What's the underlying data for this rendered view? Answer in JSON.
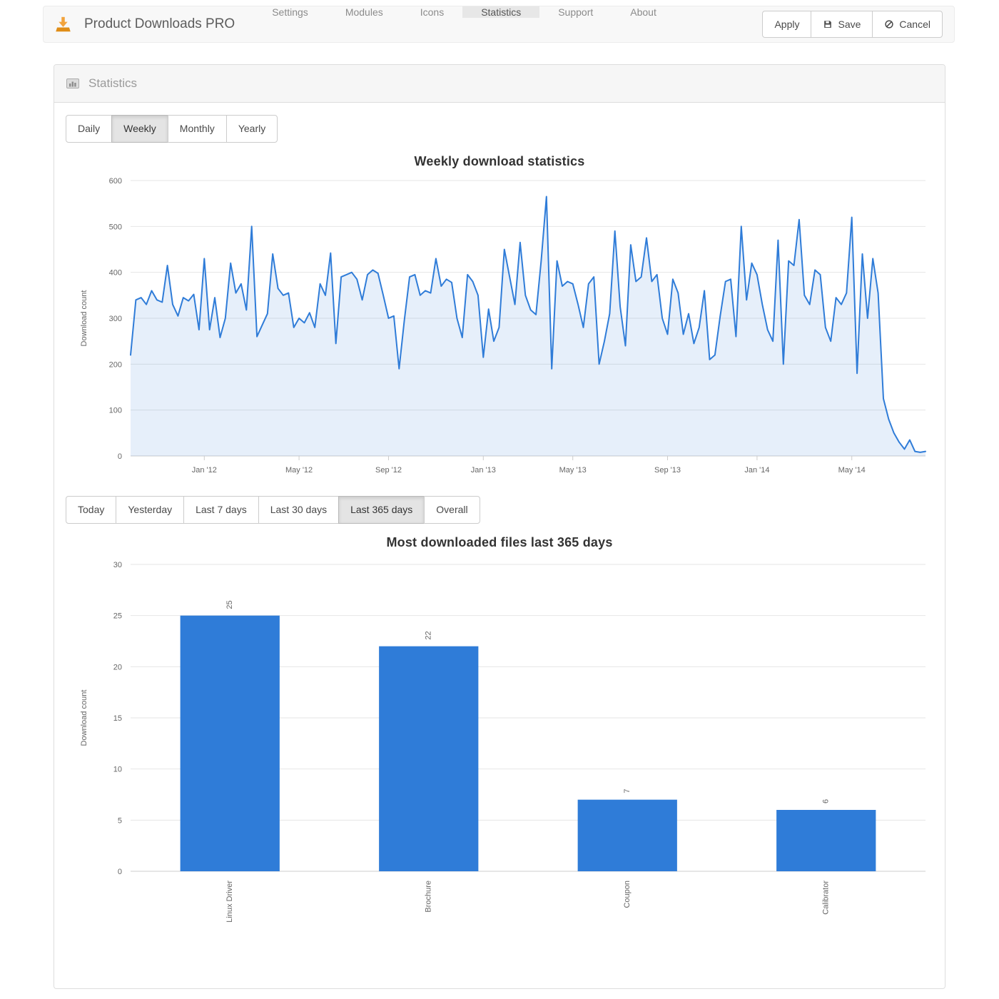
{
  "navbar": {
    "brand": "Product Downloads PRO",
    "items": [
      {
        "label": "Settings",
        "active": false
      },
      {
        "label": "Modules",
        "active": false
      },
      {
        "label": "Icons",
        "active": false
      },
      {
        "label": "Statistics",
        "active": true
      },
      {
        "label": "Support",
        "active": false
      },
      {
        "label": "About",
        "active": false
      }
    ],
    "actions": [
      {
        "label": "Apply",
        "icon": ""
      },
      {
        "label": "Save",
        "icon": "floppy-disk"
      },
      {
        "label": "Cancel",
        "icon": "ban-circle"
      }
    ]
  },
  "panel": {
    "title": "Statistics"
  },
  "period_tabs": {
    "items": [
      "Daily",
      "Weekly",
      "Monthly",
      "Yearly"
    ],
    "active": "Weekly"
  },
  "range_tabs": {
    "items": [
      "Today",
      "Yesterday",
      "Last 7 days",
      "Last 30 days",
      "Last 365 days",
      "Overall"
    ],
    "active": "Last 365 days"
  },
  "colors": {
    "accent_blue": "#2f7cd8",
    "area_fill": "rgba(47,124,216,0.12)",
    "brand_orange": "#ef9221",
    "grid": "#e6e6e6",
    "axis_line": "#cccccc",
    "tick_text": "#666666",
    "navbar_bg": "#f8f8f8",
    "active_gray": "#e7e7e7"
  },
  "chart_data": [
    {
      "type": "area",
      "title": "Weekly download statistics",
      "xlabel": "",
      "ylabel": "Download count",
      "ylim": [
        0,
        600
      ],
      "ytick_step": 100,
      "grid": true,
      "legend": "none",
      "x_tick_labels": [
        "Jan '12",
        "May '12",
        "Sep '12",
        "Jan '13",
        "May '13",
        "Sep '13",
        "Jan '14",
        "May '14"
      ],
      "x_tick_indices": [
        14,
        32,
        49,
        67,
        84,
        102,
        119,
        137
      ],
      "values": [
        220,
        340,
        345,
        330,
        360,
        340,
        335,
        415,
        330,
        305,
        345,
        338,
        352,
        275,
        430,
        275,
        345,
        258,
        300,
        420,
        355,
        375,
        318,
        500,
        260,
        285,
        310,
        440,
        365,
        350,
        355,
        280,
        300,
        290,
        312,
        280,
        375,
        350,
        442,
        245,
        390,
        395,
        400,
        385,
        340,
        395,
        405,
        398,
        350,
        300,
        305,
        190,
        295,
        390,
        395,
        350,
        360,
        355,
        430,
        370,
        385,
        378,
        300,
        258,
        395,
        380,
        350,
        215,
        320,
        250,
        280,
        450,
        390,
        330,
        465,
        350,
        318,
        308,
        425,
        565,
        190,
        425,
        370,
        380,
        375,
        330,
        280,
        375,
        390,
        200,
        250,
        310,
        490,
        325,
        240,
        460,
        380,
        390,
        475,
        380,
        395,
        300,
        265,
        385,
        355,
        265,
        310,
        245,
        280,
        360,
        210,
        220,
        305,
        380,
        385,
        260,
        500,
        340,
        420,
        395,
        330,
        275,
        250,
        470,
        200,
        425,
        415,
        515,
        350,
        330,
        405,
        395,
        280,
        250,
        345,
        330,
        355,
        520,
        180,
        440,
        300,
        430,
        355,
        125,
        80,
        50,
        30,
        15,
        35,
        10,
        8,
        10
      ]
    },
    {
      "type": "bar",
      "title": "Most downloaded files last 365 days",
      "xlabel": "",
      "ylabel": "Download count",
      "ylim": [
        0,
        30
      ],
      "ytick_step": 5,
      "grid": true,
      "legend": "none",
      "categories": [
        "Linux Driver",
        "Brochure",
        "Coupon",
        "Calibrator"
      ],
      "values": [
        25,
        22,
        7,
        6
      ]
    }
  ]
}
